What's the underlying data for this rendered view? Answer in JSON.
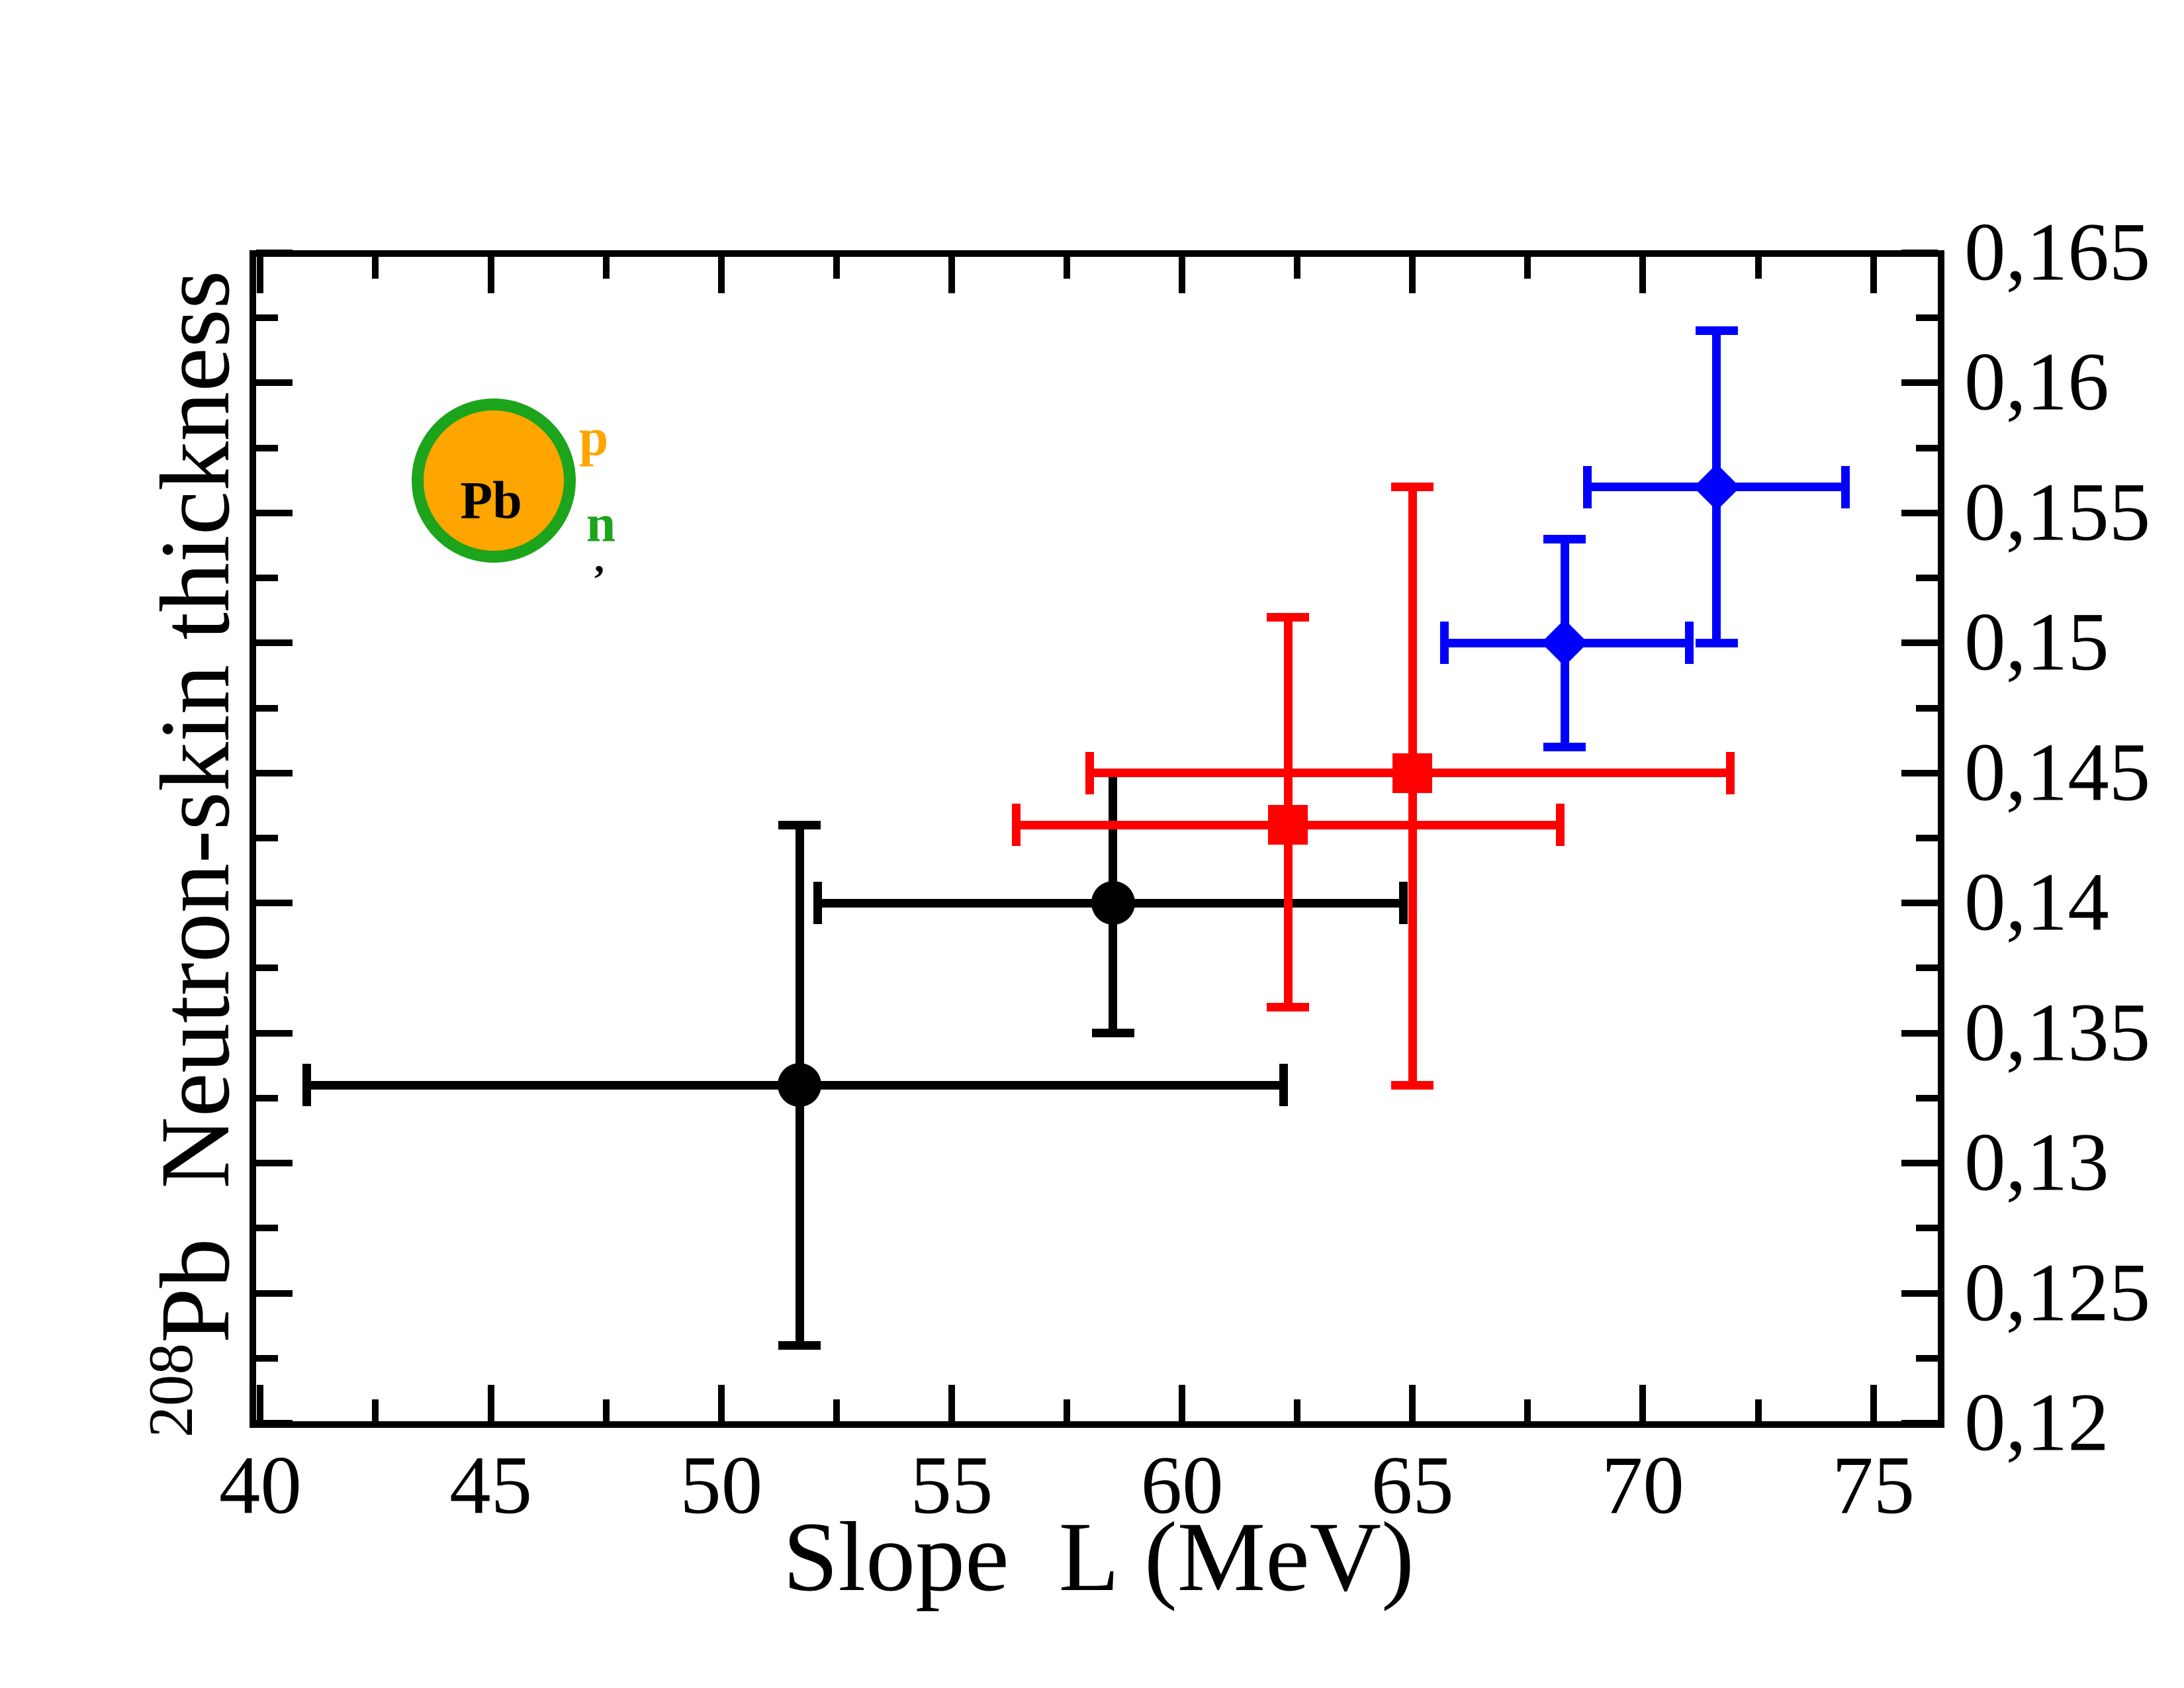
{
  "chart_data": {
    "type": "scatter",
    "title": "",
    "xlabel": "Slope  L (MeV)",
    "ylabel": {
      "superscript": "208",
      "text": "Pb  Neutron-skin thickness"
    },
    "xlim": [
      39.8,
      76.5
    ],
    "ylim": [
      0.12,
      0.165
    ],
    "grid": false,
    "legend": "none",
    "frame": "box with inward ticks on all four sides",
    "x_axis": {
      "label_side": "bottom",
      "ticks": [
        {
          "v": 40,
          "label": "40"
        },
        {
          "v": 45,
          "label": "45"
        },
        {
          "v": 50,
          "label": "50"
        },
        {
          "v": 55,
          "label": "55"
        },
        {
          "v": 60,
          "label": "60"
        },
        {
          "v": 65,
          "label": "65"
        },
        {
          "v": 70,
          "label": "70"
        },
        {
          "v": 75,
          "label": "75"
        }
      ],
      "minor": [
        42.5,
        47.5,
        52.5,
        57.5,
        62.5,
        67.5,
        72.5
      ]
    },
    "y_axis": {
      "label_side": "right",
      "decimal_separator": ",",
      "ticks": [
        {
          "v": 0.165,
          "label": "0,165"
        },
        {
          "v": 0.16,
          "label": "0,16"
        },
        {
          "v": 0.155,
          "label": "0,155"
        },
        {
          "v": 0.15,
          "label": "0,15"
        },
        {
          "v": 0.145,
          "label": "0,145"
        },
        {
          "v": 0.14,
          "label": "0,14"
        },
        {
          "v": 0.135,
          "label": "0,135"
        },
        {
          "v": 0.13,
          "label": "0,13"
        },
        {
          "v": 0.125,
          "label": "0,125"
        },
        {
          "v": 0.12,
          "label": "0,12"
        }
      ],
      "minor": [
        0.1625,
        0.1575,
        0.1525,
        0.1475,
        0.1425,
        0.1375,
        0.1325,
        0.1275,
        0.1225
      ]
    },
    "series": [
      {
        "name": "black circles",
        "marker": "circle",
        "color": "#000000",
        "points": [
          {
            "x": 58.5,
            "y": 0.14,
            "xlo": 52.1,
            "xhi": 64.8,
            "ylo": 0.135,
            "yhi": 0.145
          },
          {
            "x": 51.7,
            "y": 0.133,
            "xlo": 41.0,
            "xhi": 62.2,
            "ylo": 0.123,
            "yhi": 0.143
          }
        ]
      },
      {
        "name": "red squares",
        "marker": "square",
        "color": "#FF0000",
        "points": [
          {
            "x": 62.3,
            "y": 0.143,
            "xlo": 56.4,
            "xhi": 68.2,
            "ylo": 0.136,
            "yhi": 0.151
          },
          {
            "x": 65.0,
            "y": 0.145,
            "xlo": 58.0,
            "xhi": 71.9,
            "ylo": 0.133,
            "yhi": 0.156
          }
        ]
      },
      {
        "name": "blue diamonds",
        "marker": "diamond",
        "color": "#0000FF",
        "points": [
          {
            "x": 68.3,
            "y": 0.15,
            "xlo": 65.7,
            "xhi": 71.0,
            "ylo": 0.146,
            "yhi": 0.154
          },
          {
            "x": 71.6,
            "y": 0.156,
            "xlo": 68.8,
            "xhi": 74.4,
            "ylo": 0.15,
            "yhi": 0.162
          }
        ]
      }
    ],
    "inset": {
      "core_label": "Pb",
      "proton_label": "p",
      "neutron_label": "n",
      "mark": ",",
      "core_color": "#FFA500",
      "skin_color": "#1CA41C",
      "core_text_color": "#000000"
    }
  }
}
